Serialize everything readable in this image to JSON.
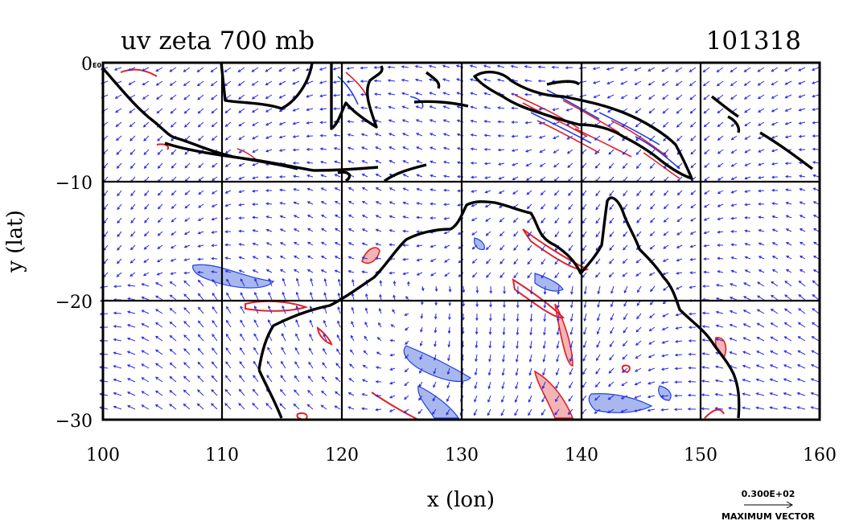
{
  "title": "uv zeta 700 mb",
  "timestamp": "101318",
  "corner_label": "E0",
  "x_axis": {
    "label": "x (lon)",
    "min": 100,
    "max": 160,
    "ticks": [
      "100",
      "110",
      "120",
      "130",
      "140",
      "150",
      "160"
    ]
  },
  "y_axis": {
    "label": "y (lat)",
    "min": -30,
    "max": 0,
    "ticks": [
      "0",
      "−10",
      "−20",
      "−30"
    ]
  },
  "vector_key": {
    "value": "0.300E+02",
    "label": "MAXIMUM VECTOR"
  },
  "colors": {
    "coast": "#000000",
    "vectors": "#2a2ae6",
    "positive": "#e0202a",
    "negative": "#2040e0",
    "neg_fill": "#a8b8ee",
    "pos_fill": "#f2b4b4"
  },
  "chart_data": {
    "type": "map-field",
    "variables": [
      "wind vectors (u,v)",
      "relative vorticity (zeta)"
    ],
    "level": "700 mb",
    "xlim": [
      100,
      160
    ],
    "ylim": [
      -30,
      0
    ],
    "grid_lon": [
      110,
      120,
      130,
      140,
      150
    ],
    "grid_lat": [
      -10,
      -20
    ],
    "grid": true,
    "positive_zeta_regions": [
      {
        "lon": 138,
        "lat": -3.5
      },
      {
        "lon": 146,
        "lat": -6
      },
      {
        "lon": 137,
        "lat": -19
      },
      {
        "lon": 138.5,
        "lat": -24
      },
      {
        "lon": 137,
        "lat": -28
      },
      {
        "lon": 122,
        "lat": -16
      },
      {
        "lon": 115,
        "lat": -20.5
      },
      {
        "lon": 151.5,
        "lat": -24.5
      }
    ],
    "negative_zeta_regions": [
      {
        "lon": 115,
        "lat": -17
      },
      {
        "lon": 127,
        "lat": -25
      },
      {
        "lon": 129,
        "lat": -28
      },
      {
        "lon": 146,
        "lat": -28
      },
      {
        "lon": 139,
        "lat": -18
      }
    ]
  }
}
